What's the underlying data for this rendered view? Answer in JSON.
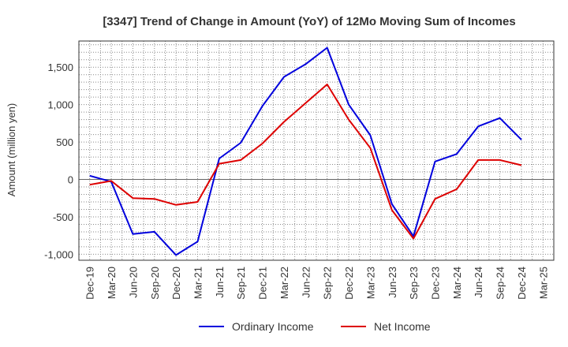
{
  "chart_data": {
    "type": "line",
    "title": "[3347]  Trend of Change in Amount (YoY) of 12Mo Moving Sum of Incomes",
    "xlabel": "",
    "ylabel": "Amount (million yen)",
    "ylim": [
      -1080,
      1850
    ],
    "yticks": [
      -1000,
      -500,
      0,
      500,
      1000,
      1500
    ],
    "ytick_labels": [
      "-1,000",
      "-500",
      "0",
      "500",
      "1,000",
      "1,500"
    ],
    "grid": true,
    "legend_position": "bottom",
    "categories": [
      "Dec-19",
      "Mar-20",
      "Jun-20",
      "Sep-20",
      "Dec-20",
      "Mar-21",
      "Jun-21",
      "Sep-21",
      "Dec-21",
      "Mar-22",
      "Jun-22",
      "Sep-22",
      "Dec-22",
      "Mar-23",
      "Jun-23",
      "Sep-23",
      "Dec-23",
      "Mar-24",
      "Jun-24",
      "Sep-24",
      "Dec-24",
      "Mar-25"
    ],
    "series": [
      {
        "name": "Ordinary Income",
        "color": "#0000dd",
        "values": [
          50,
          -30,
          -730,
          -700,
          -1010,
          -830,
          280,
          490,
          980,
          1370,
          1540,
          1760,
          1000,
          590,
          -330,
          -760,
          240,
          340,
          710,
          820,
          530,
          null
        ]
      },
      {
        "name": "Net Income",
        "color": "#dd0000",
        "values": [
          -70,
          -20,
          -250,
          -260,
          -340,
          -300,
          210,
          260,
          480,
          770,
          1020,
          1270,
          800,
          420,
          -410,
          -790,
          -260,
          -130,
          260,
          260,
          190,
          null
        ]
      }
    ]
  }
}
